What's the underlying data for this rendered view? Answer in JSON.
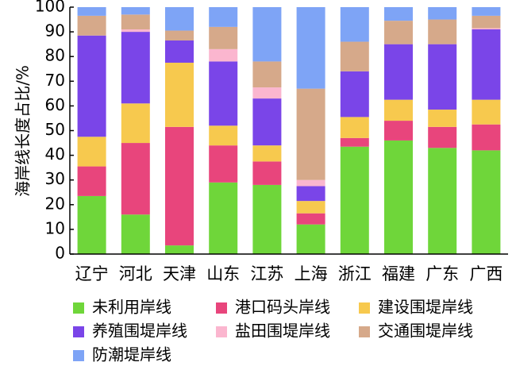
{
  "chart_data": {
    "type": "bar",
    "stacked": true,
    "ylabel": "海岸线长度占比/%",
    "ylim": [
      0,
      100
    ],
    "yticks": [
      0,
      10,
      20,
      30,
      40,
      50,
      60,
      70,
      80,
      90,
      100
    ],
    "grid": false,
    "legend_position": "bottom",
    "categories": [
      "辽宁",
      "河北",
      "天津",
      "山东",
      "江苏",
      "上海",
      "浙江",
      "福建",
      "广东",
      "广西"
    ],
    "series": [
      {
        "name": "未利用岸线",
        "color": "#6fd63a",
        "values": [
          23.5,
          16,
          3.5,
          29,
          28,
          12,
          43.5,
          46,
          43,
          42
        ]
      },
      {
        "name": "港口码头岸线",
        "color": "#e8457c",
        "values": [
          12,
          29,
          48,
          15,
          9.5,
          4.5,
          3.5,
          8,
          8.5,
          10.5
        ]
      },
      {
        "name": "建设围堤岸线",
        "color": "#f7c94e",
        "values": [
          12,
          16,
          26,
          8,
          6.5,
          5,
          8.5,
          8.5,
          7,
          10
        ]
      },
      {
        "name": "养殖围堤岸线",
        "color": "#7a45e8",
        "values": [
          41,
          29,
          9,
          26,
          19,
          6,
          18.5,
          22.5,
          26.5,
          28.5
        ]
      },
      {
        "name": "盐田围堤岸线",
        "color": "#fbb6cf",
        "values": [
          0,
          1,
          0,
          5,
          4.5,
          2.5,
          0,
          0,
          0,
          0.5
        ]
      },
      {
        "name": "交通围堤岸线",
        "color": "#d6a98a",
        "values": [
          8,
          6,
          4,
          9,
          10.5,
          37,
          12,
          9.5,
          10,
          5
        ]
      },
      {
        "name": "防潮堤岸线",
        "color": "#7ea4f6",
        "values": [
          3.5,
          3,
          9.5,
          8,
          22,
          33,
          14,
          5.5,
          5,
          3.5
        ]
      }
    ]
  }
}
